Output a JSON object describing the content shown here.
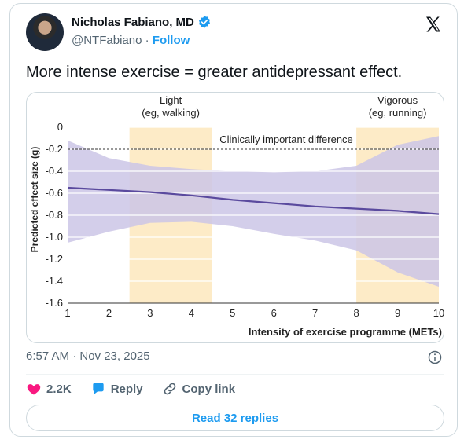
{
  "author": {
    "name": "Nicholas Fabiano, MD",
    "handle": "@NTFabiano",
    "separator": "·",
    "follow_label": "Follow"
  },
  "tweet": {
    "text": "More intense exercise = greater antidepressant effect.",
    "timestamp": "6:57 AM · Nov 23, 2025"
  },
  "actions": {
    "likes": "2.2K",
    "reply_label": "Reply",
    "copy_link_label": "Copy link",
    "read_replies_label": "Read 32 replies"
  },
  "colors": {
    "accent": "#1d9bf0",
    "like": "#f91880",
    "band": "#cbc5e6",
    "line": "#5a4a9e",
    "zone": "#fdebc7"
  },
  "chart_data": {
    "type": "line",
    "xlabel": "Intensity of exercise programme (METs)",
    "ylabel": "Predicted effect size (g)",
    "xlim": [
      1,
      10
    ],
    "ylim": [
      -1.6,
      0
    ],
    "xticks": [
      "1",
      "2",
      "3",
      "4",
      "5",
      "6",
      "7",
      "8",
      "9",
      "10"
    ],
    "yticks": [
      "0",
      "-0.2",
      "-0.4",
      "-0.6",
      "-0.8",
      "-1.0",
      "-1.2",
      "-1.4",
      "-1.6"
    ],
    "zones": [
      {
        "label1": "Light",
        "label2": "(eg, walking)",
        "from": 2.5,
        "to": 4.5
      },
      {
        "label1": "Vigorous",
        "label2": "(eg, running)",
        "from": 8,
        "to": 10
      }
    ],
    "reference": {
      "label": "Clinically important difference",
      "y": -0.2
    },
    "series": [
      {
        "x": [
          1,
          2,
          3,
          4,
          5,
          6,
          7,
          8,
          9,
          10
        ],
        "y": [
          -0.55,
          -0.57,
          -0.59,
          -0.62,
          -0.66,
          -0.69,
          -0.72,
          -0.74,
          -0.76,
          -0.79
        ]
      }
    ],
    "ci_upper": {
      "x": [
        1,
        2,
        3,
        4,
        5,
        6,
        7,
        8,
        9,
        10
      ],
      "y": [
        -0.12,
        -0.28,
        -0.35,
        -0.38,
        -0.4,
        -0.41,
        -0.4,
        -0.35,
        -0.16,
        -0.08
      ]
    },
    "ci_lower": {
      "x": [
        1,
        2,
        3,
        4,
        5,
        6,
        7,
        8,
        9,
        10
      ],
      "y": [
        -1.05,
        -0.95,
        -0.87,
        -0.86,
        -0.9,
        -0.97,
        -1.03,
        -1.12,
        -1.32,
        -1.45
      ]
    }
  }
}
